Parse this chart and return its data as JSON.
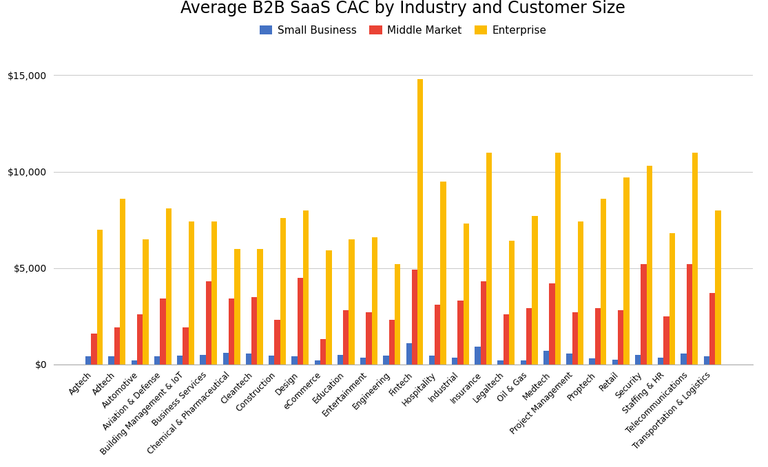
{
  "title": "Average B2B SaaS CAC by Industry and Customer Size",
  "categories": [
    "Agtech",
    "Adtech",
    "Automotive",
    "Aviation & Defense",
    "Building Management & IoT",
    "Business Services",
    "Chemical & Pharmaceutical",
    "Cleantech",
    "Construction",
    "Design",
    "eCommerce",
    "Education",
    "Entertainment",
    "Engineering",
    "Fintech",
    "Hospitality",
    "Industrial",
    "Insurance",
    "Legaltech",
    "Oil & Gas",
    "Medtech",
    "Project Management",
    "Proptech",
    "Retail",
    "Security",
    "Staffing & HR",
    "Telecommunications",
    "Transportation & Logistics"
  ],
  "small_business": [
    400,
    400,
    200,
    400,
    450,
    500,
    600,
    550,
    450,
    400,
    200,
    500,
    350,
    450,
    1100,
    450,
    350,
    900,
    200,
    200,
    700,
    550,
    300,
    250,
    500,
    350,
    550,
    400
  ],
  "middle_market": [
    1600,
    1900,
    2600,
    3400,
    1900,
    4300,
    3400,
    3500,
    2300,
    4500,
    1300,
    2800,
    2700,
    2300,
    4900,
    3100,
    3300,
    4300,
    2600,
    2900,
    4200,
    2700,
    2900,
    2800,
    5200,
    2500,
    5200,
    3700
  ],
  "enterprise": [
    7000,
    8600,
    6500,
    8100,
    7400,
    7400,
    6000,
    6000,
    7600,
    8000,
    5900,
    6500,
    6600,
    5200,
    14800,
    9500,
    7300,
    11000,
    6400,
    7700,
    11000,
    7400,
    8600,
    9700,
    10300,
    6800,
    11000,
    8000
  ],
  "colors": {
    "small_business": "#4472C4",
    "middle_market": "#EA4335",
    "enterprise": "#FBBC04"
  },
  "legend_labels": [
    "Small Business",
    "Middle Market",
    "Enterprise"
  ],
  "background_color": "#ffffff",
  "grid_color": "#cccccc",
  "ylim": [
    0,
    16000
  ],
  "ytick_values": [
    0,
    5000,
    10000,
    15000
  ]
}
